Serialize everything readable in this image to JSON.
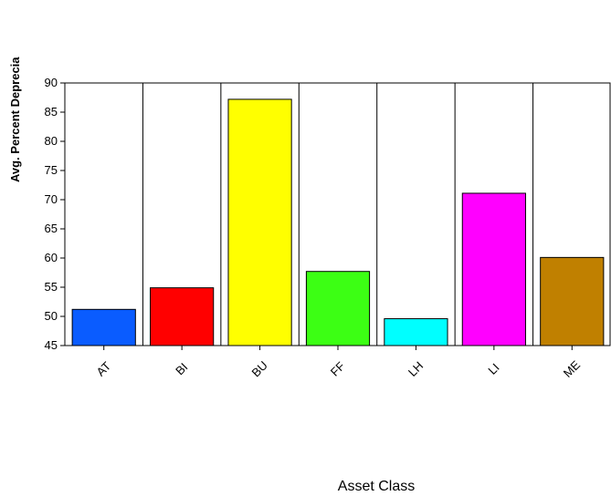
{
  "chart_data": {
    "type": "bar",
    "title": "",
    "xlabel": "Asset Class",
    "ylabel": "Avg. Percent Deprecia",
    "categories": [
      "AT",
      "BI",
      "BU",
      "FF",
      "LH",
      "LI",
      "ME"
    ],
    "values": [
      51.2,
      54.9,
      87.2,
      57.7,
      49.6,
      71.1,
      60.1
    ],
    "colors": [
      "#0a5cff",
      "#ff0000",
      "#ffff00",
      "#3cff14",
      "#00ffff",
      "#ff00ff",
      "#c08000"
    ],
    "ylim": [
      45,
      90
    ],
    "yticks": [
      45,
      50,
      55,
      60,
      65,
      70,
      75,
      80,
      85,
      90
    ],
    "grid": "vertical-lines-between-categories",
    "legend": "none"
  }
}
